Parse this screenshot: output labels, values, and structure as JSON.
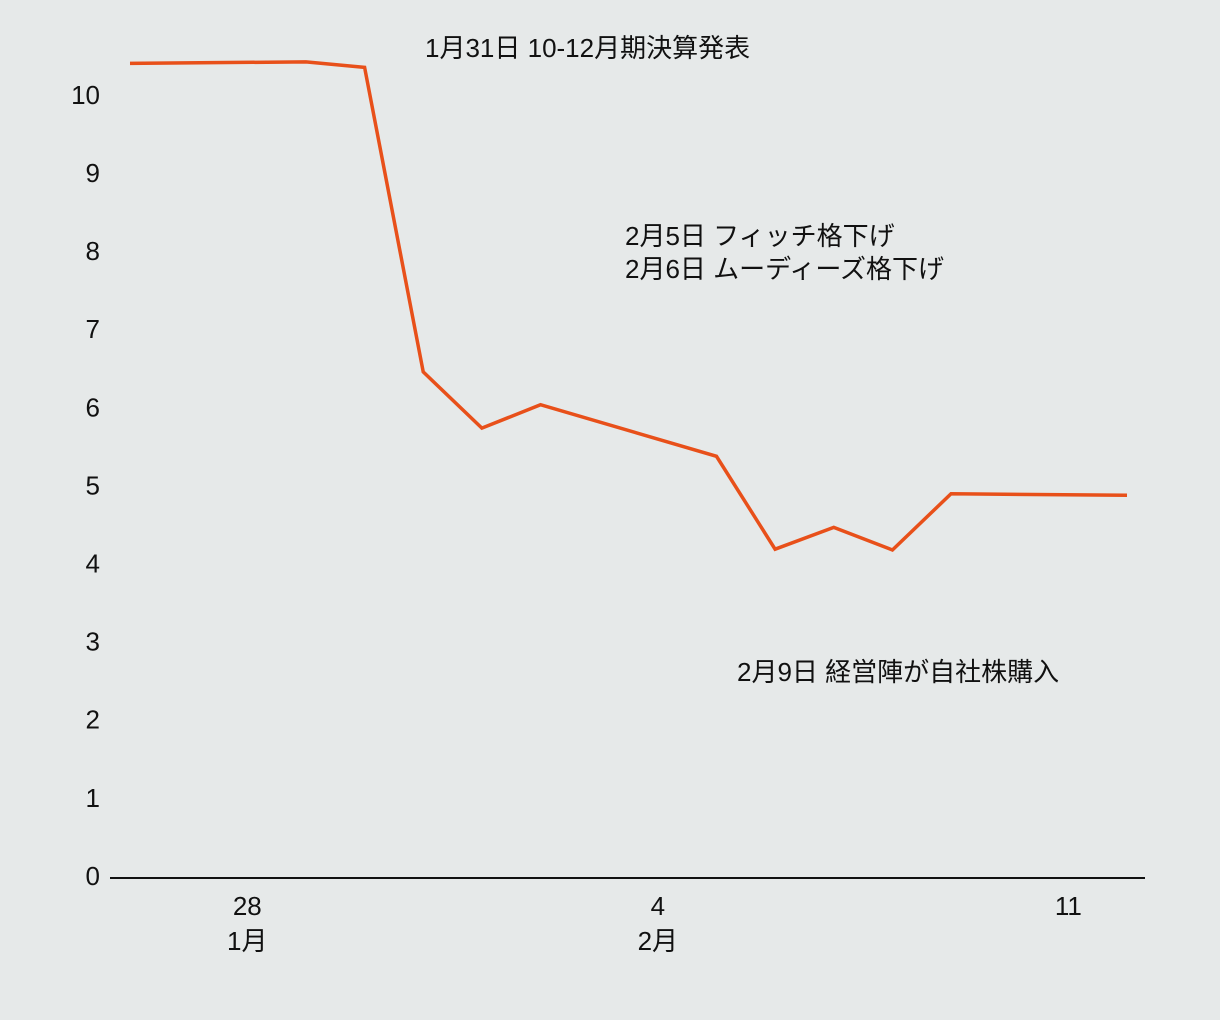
{
  "chart_data": {
    "type": "line",
    "x": [
      "01-26",
      "01-29",
      "01-30",
      "01-31",
      "02-01",
      "02-02",
      "02-05",
      "02-06",
      "02-07",
      "02-08",
      "02-09",
      "02-12"
    ],
    "series": [
      {
        "color": "#e8501a",
        "values": [
          10.43,
          10.45,
          10.38,
          6.48,
          5.76,
          6.06,
          5.4,
          4.21,
          4.49,
          4.2,
          4.92,
          4.9
        ]
      }
    ],
    "xlim": [
      "01-26",
      "02-12"
    ],
    "xticks": [
      {
        "value": "01-28",
        "label": "28",
        "group": "1月"
      },
      {
        "value": "02-04",
        "label": "4",
        "group": "2月"
      },
      {
        "value": "02-11",
        "label": "11"
      }
    ],
    "ylim": [
      0,
      10
    ],
    "yticks": [
      0,
      1,
      2,
      3,
      4,
      5,
      6,
      7,
      8,
      9,
      10
    ],
    "annotations": [
      "1月31日 10-12月期決算発表",
      "2月5日 フィッチ格下げ",
      "2月6日 ムーディーズ格下げ",
      "2月9日 経営陣が自社株購入"
    ]
  }
}
